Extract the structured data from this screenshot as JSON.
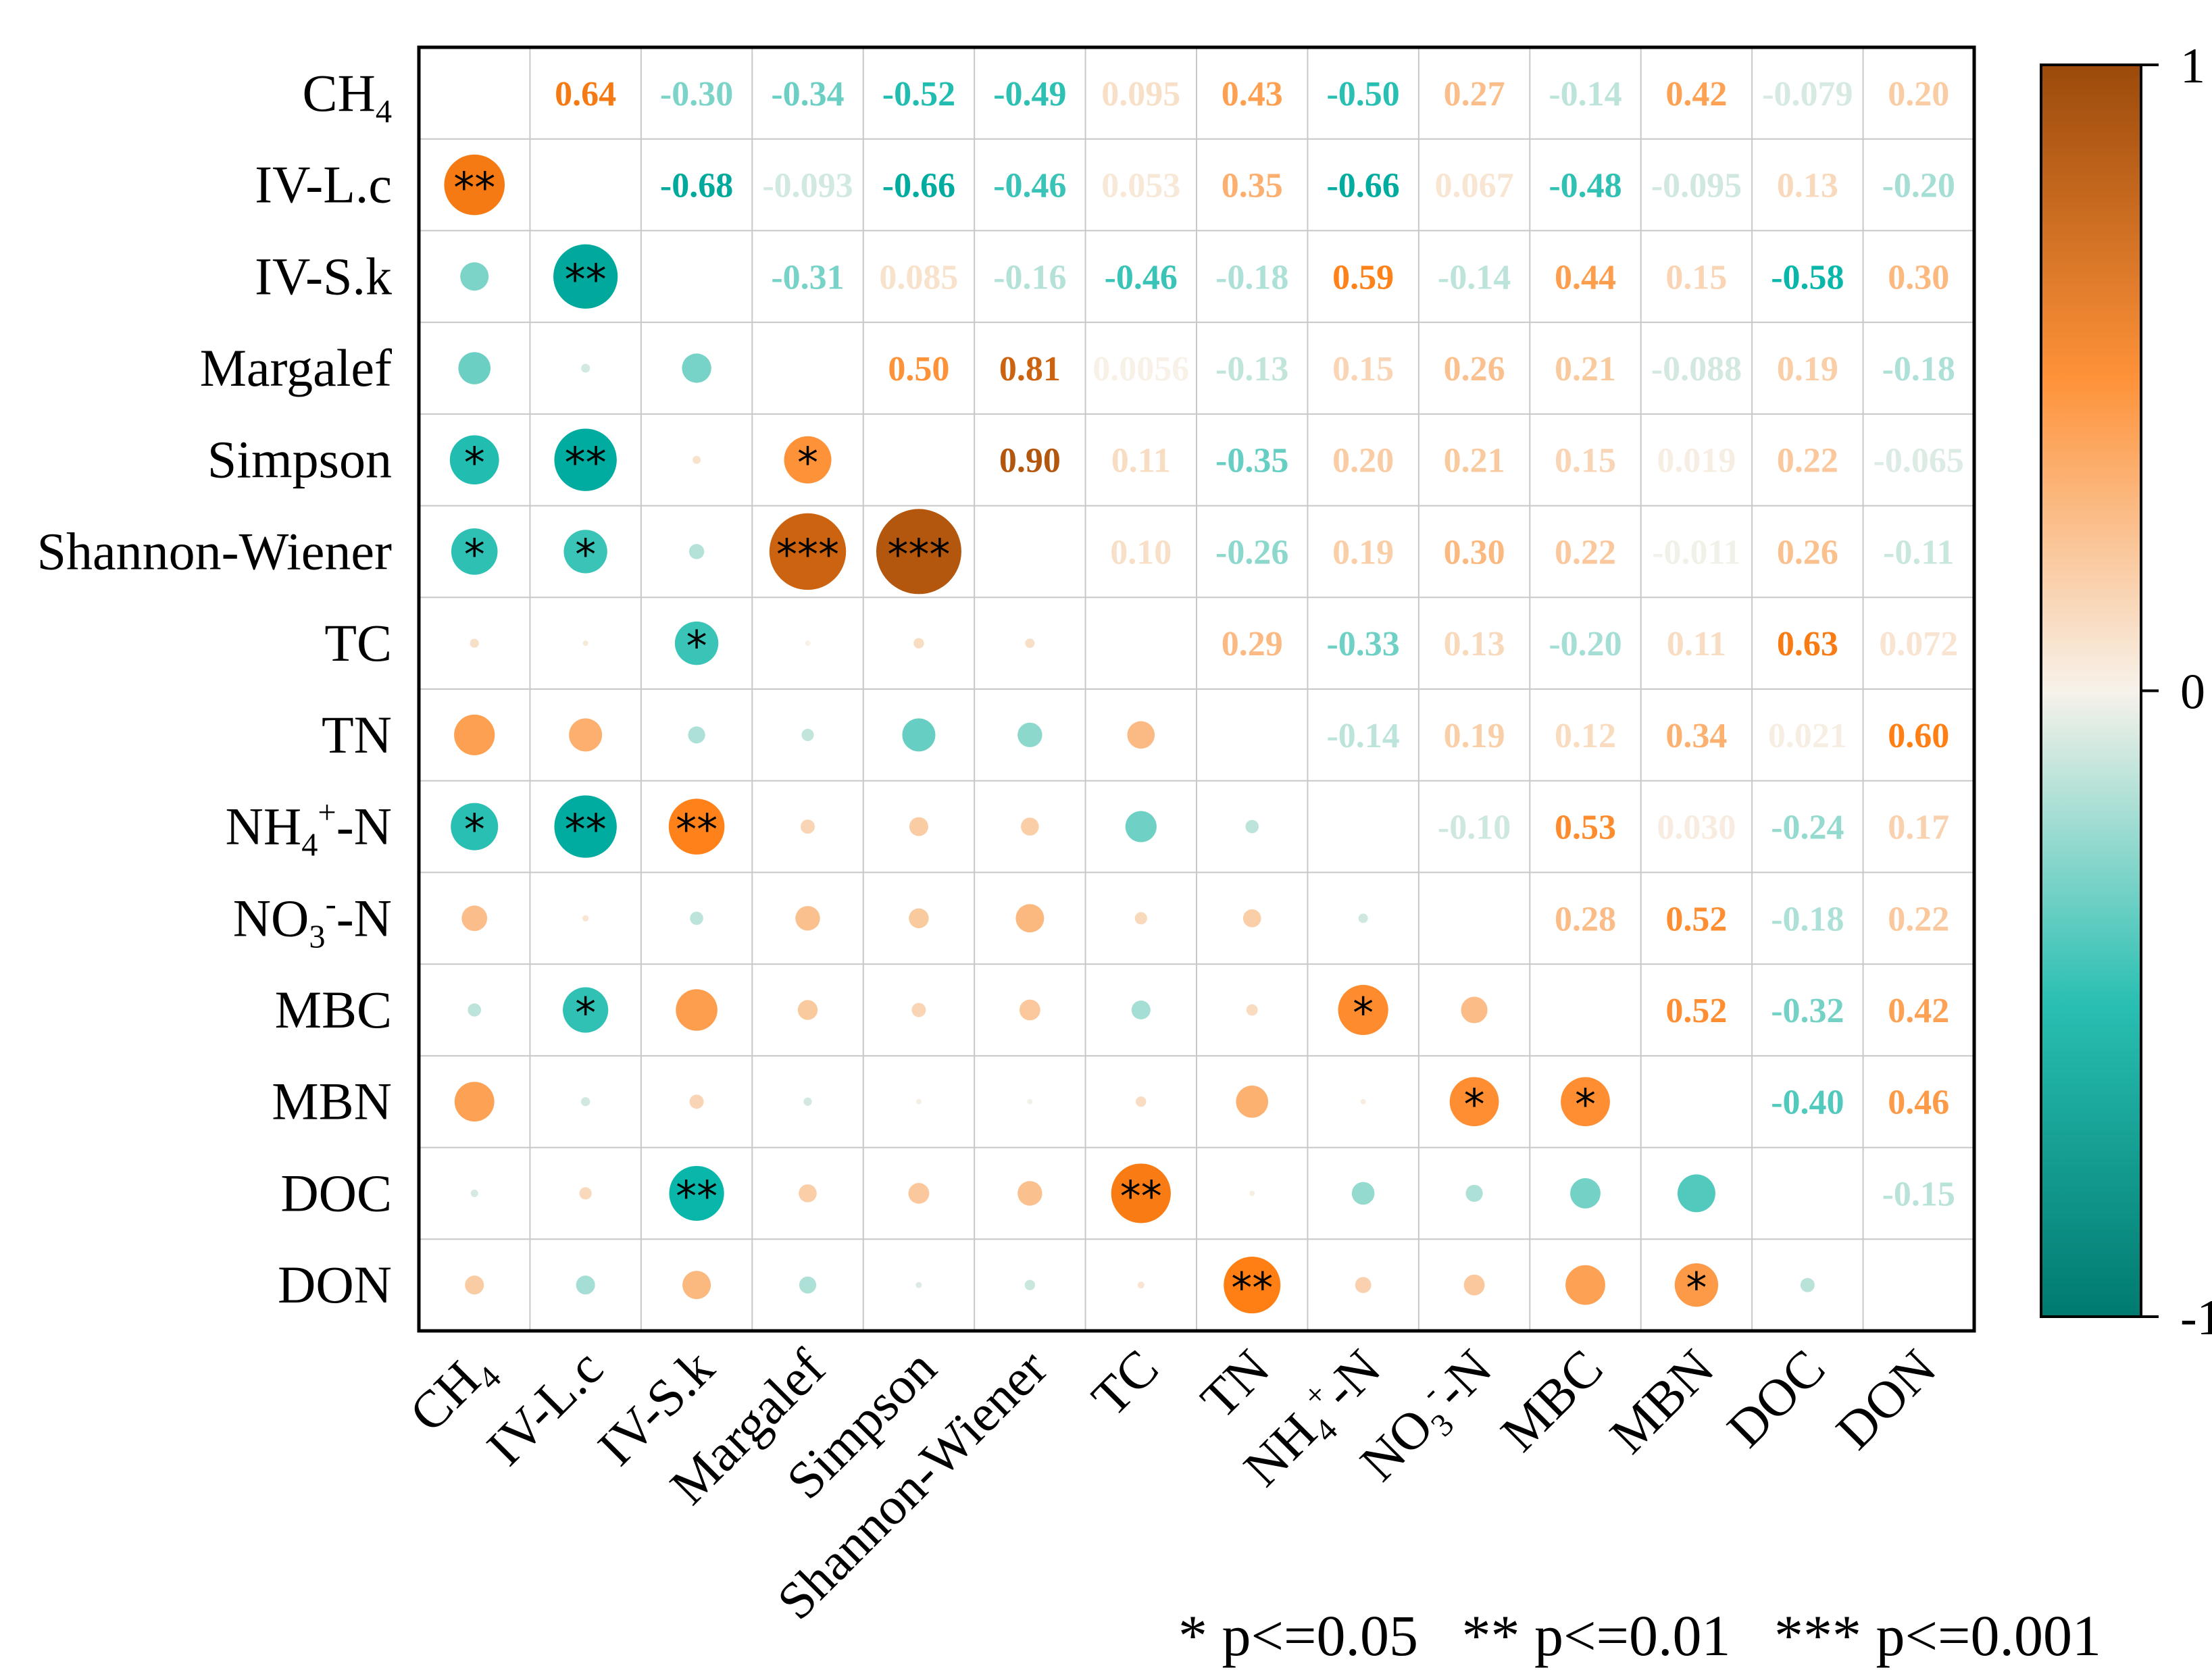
{
  "chart_data": {
    "type": "heatmap",
    "subtype": "correlation-matrix",
    "variables": [
      {
        "name": "CH4",
        "base": "CH",
        "sub": "4",
        "sup": "",
        "tail": ""
      },
      {
        "name": "IV-L.c",
        "base": "IV-L.c",
        "sub": "",
        "sup": "",
        "tail": ""
      },
      {
        "name": "IV-S.k",
        "base": "IV-S.k",
        "sub": "",
        "sup": "",
        "tail": ""
      },
      {
        "name": "Margalef",
        "base": "Margalef",
        "sub": "",
        "sup": "",
        "tail": ""
      },
      {
        "name": "Simpson",
        "base": "Simpson",
        "sub": "",
        "sup": "",
        "tail": ""
      },
      {
        "name": "Shannon-Wiener",
        "base": "Shannon-Wiener",
        "sub": "",
        "sup": "",
        "tail": ""
      },
      {
        "name": "TC",
        "base": "TC",
        "sub": "",
        "sup": "",
        "tail": ""
      },
      {
        "name": "TN",
        "base": "TN",
        "sub": "",
        "sup": "",
        "tail": ""
      },
      {
        "name": "NH4+-N",
        "base": "NH",
        "sub": "4",
        "sup": "+",
        "tail": "-N"
      },
      {
        "name": "NO3--N",
        "base": "NO",
        "sub": "3",
        "sup": "-",
        "tail": "-N"
      },
      {
        "name": "MBC",
        "base": "MBC",
        "sub": "",
        "sup": "",
        "tail": ""
      },
      {
        "name": "MBN",
        "base": "MBN",
        "sub": "",
        "sup": "",
        "tail": ""
      },
      {
        "name": "DOC",
        "base": "DOC",
        "sub": "",
        "sup": "",
        "tail": ""
      },
      {
        "name": "DON",
        "base": "DON",
        "sub": "",
        "sup": "",
        "tail": ""
      }
    ],
    "upper_labels": [
      [
        "",
        "0.64",
        "-0.30",
        "-0.34",
        "-0.52",
        "-0.49",
        "0.095",
        "0.43",
        "-0.50",
        "0.27",
        "-0.14",
        "0.42",
        "-0.079",
        "0.20"
      ],
      [
        "",
        "",
        "-0.68",
        "-0.093",
        "-0.66",
        "-0.46",
        "0.053",
        "0.35",
        "-0.66",
        "0.067",
        "-0.48",
        "-0.095",
        "0.13",
        "-0.20"
      ],
      [
        "",
        "",
        "",
        "-0.31",
        "0.085",
        "-0.16",
        "-0.46",
        "-0.18",
        "0.59",
        "-0.14",
        "0.44",
        "0.15",
        "-0.58",
        "0.30"
      ],
      [
        "",
        "",
        "",
        "",
        "0.50",
        "0.81",
        "0.0056",
        "-0.13",
        "0.15",
        "0.26",
        "0.21",
        "-0.088",
        "0.19",
        "-0.18"
      ],
      [
        "",
        "",
        "",
        "",
        "",
        "0.90",
        "0.11",
        "-0.35",
        "0.20",
        "0.21",
        "0.15",
        "0.019",
        "0.22",
        "-0.065"
      ],
      [
        "",
        "",
        "",
        "",
        "",
        "",
        "0.10",
        "-0.26",
        "0.19",
        "0.30",
        "0.22",
        "-0.011",
        "0.26",
        "-0.11"
      ],
      [
        "",
        "",
        "",
        "",
        "",
        "",
        "",
        "0.29",
        "-0.33",
        "0.13",
        "-0.20",
        "0.11",
        "0.63",
        "0.072"
      ],
      [
        "",
        "",
        "",
        "",
        "",
        "",
        "",
        "",
        "-0.14",
        "0.19",
        "0.12",
        "0.34",
        "0.021",
        "0.60"
      ],
      [
        "",
        "",
        "",
        "",
        "",
        "",
        "",
        "",
        "",
        "-0.10",
        "0.53",
        "0.030",
        "-0.24",
        "0.17"
      ],
      [
        "",
        "",
        "",
        "",
        "",
        "",
        "",
        "",
        "",
        "",
        "0.28",
        "0.52",
        "-0.18",
        "0.22"
      ],
      [
        "",
        "",
        "",
        "",
        "",
        "",
        "",
        "",
        "",
        "",
        "",
        "0.52",
        "-0.32",
        "0.42"
      ],
      [
        "",
        "",
        "",
        "",
        "",
        "",
        "",
        "",
        "",
        "",
        "",
        "",
        "-0.40",
        "0.46"
      ],
      [
        "",
        "",
        "",
        "",
        "",
        "",
        "",
        "",
        "",
        "",
        "",
        "",
        "",
        "-0.15"
      ],
      [
        "",
        "",
        "",
        "",
        "",
        "",
        "",
        "",
        "",
        "",
        "",
        "",
        "",
        ""
      ]
    ],
    "significance": [
      [
        "",
        "**",
        "",
        "",
        "*",
        "*",
        "",
        "",
        "*",
        "",
        "",
        "",
        "",
        ""
      ],
      [
        "",
        "",
        "**",
        "",
        "**",
        "*",
        "",
        "",
        "**",
        "",
        "*",
        "",
        "",
        ""
      ],
      [
        "",
        "",
        "",
        "",
        "",
        "",
        "*",
        "",
        "**",
        "",
        "",
        "",
        "**",
        ""
      ],
      [
        "",
        "",
        "",
        "",
        "*",
        "***",
        "",
        "",
        "",
        "",
        "",
        "",
        "",
        ""
      ],
      [
        "",
        "",
        "",
        "",
        "",
        "***",
        "",
        "",
        "",
        "",
        "",
        "",
        "",
        ""
      ],
      [
        "",
        "",
        "",
        "",
        "",
        "",
        "",
        "",
        "",
        "",
        "",
        "",
        "",
        ""
      ],
      [
        "",
        "",
        "",
        "",
        "",
        "",
        "",
        "",
        "",
        "",
        "",
        "",
        "**",
        ""
      ],
      [
        "",
        "",
        "",
        "",
        "",
        "",
        "",
        "",
        "",
        "",
        "",
        "",
        "",
        "**"
      ],
      [
        "",
        "",
        "",
        "",
        "",
        "",
        "",
        "",
        "",
        "",
        "*",
        "",
        "",
        ""
      ],
      [
        "",
        "",
        "",
        "",
        "",
        "",
        "",
        "",
        "",
        "",
        "",
        "*",
        "",
        ""
      ],
      [
        "",
        "",
        "",
        "",
        "",
        "",
        "",
        "",
        "",
        "",
        "",
        "*",
        "",
        ""
      ],
      [
        "",
        "",
        "",
        "",
        "",
        "",
        "",
        "",
        "",
        "",
        "",
        "",
        "",
        "*"
      ],
      [
        "",
        "",
        "",
        "",
        "",
        "",
        "",
        "",
        "",
        "",
        "",
        "",
        "",
        ""
      ],
      [
        "",
        "",
        "",
        "",
        "",
        "",
        "",
        "",
        "",
        "",
        "",
        "",
        "",
        ""
      ]
    ],
    "colorbar": {
      "min": -1,
      "max": 1,
      "ticks": [
        "1",
        "0",
        "-1"
      ],
      "tick_values": [
        1,
        0,
        -1
      ]
    },
    "colors": {
      "negative": "#007a70",
      "negative_mid": "#00b5a7",
      "neutral": "#f7f2ea",
      "positive_mid": "#ff7f15",
      "positive": "#9b4a0b",
      "grid": "#c8c8c8",
      "frame": "#000000",
      "text": "#000000"
    },
    "footnote": "* p<=0.05   ** p<=0.01   *** p<=0.001"
  }
}
